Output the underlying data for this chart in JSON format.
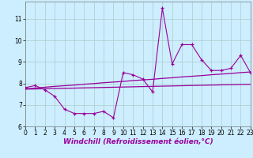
{
  "xlabel": "Windchill (Refroidissement éolien,°C)",
  "bg_color": "#cceeff",
  "grid_color": "#aacccc",
  "line_color": "#990099",
  "x": [
    0,
    1,
    2,
    3,
    4,
    5,
    6,
    7,
    8,
    9,
    10,
    11,
    12,
    13,
    14,
    15,
    16,
    17,
    18,
    19,
    20,
    21,
    22,
    23
  ],
  "y_main": [
    7.8,
    7.9,
    7.7,
    7.4,
    6.8,
    6.6,
    6.6,
    6.6,
    6.7,
    6.4,
    8.5,
    8.4,
    8.2,
    7.6,
    11.5,
    8.9,
    9.8,
    9.8,
    9.1,
    8.6,
    8.6,
    8.7,
    9.3,
    8.5
  ],
  "y_trend1": [
    7.75,
    7.78,
    7.82,
    7.86,
    7.89,
    7.92,
    7.96,
    7.99,
    8.03,
    8.06,
    8.09,
    8.13,
    8.16,
    8.19,
    8.23,
    8.26,
    8.3,
    8.33,
    8.36,
    8.4,
    8.43,
    8.46,
    8.5,
    8.53
  ],
  "y_trend2": [
    7.73,
    7.74,
    7.75,
    7.76,
    7.77,
    7.78,
    7.79,
    7.8,
    7.81,
    7.82,
    7.83,
    7.84,
    7.85,
    7.86,
    7.87,
    7.88,
    7.89,
    7.9,
    7.91,
    7.92,
    7.93,
    7.94,
    7.95,
    7.96
  ],
  "ylim": [
    6.0,
    11.8
  ],
  "xlim": [
    0,
    23
  ],
  "yticks": [
    6,
    7,
    8,
    9,
    10,
    11
  ],
  "xticks": [
    0,
    1,
    2,
    3,
    4,
    5,
    6,
    7,
    8,
    9,
    10,
    11,
    12,
    13,
    14,
    15,
    16,
    17,
    18,
    19,
    20,
    21,
    22,
    23
  ],
  "tick_fontsize": 5.5,
  "xlabel_fontsize": 6.5
}
